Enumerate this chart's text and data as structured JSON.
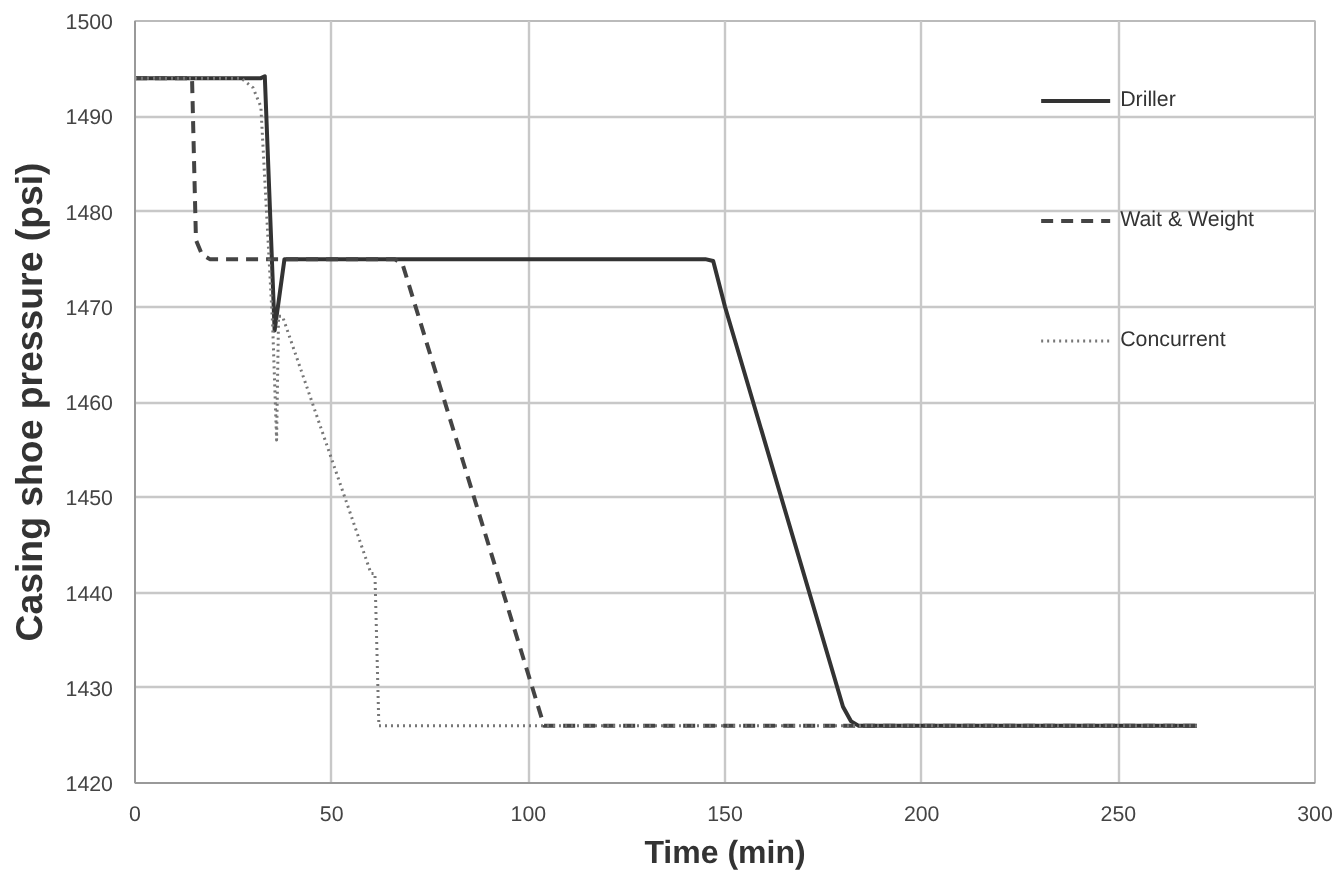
{
  "chart_data": {
    "type": "line",
    "xlabel": "Time (min)",
    "ylabel": "Casing shoe pressure (psi)",
    "xlim": [
      0,
      300
    ],
    "ylim": [
      1420,
      1500
    ],
    "xticks": [
      0,
      50,
      100,
      150,
      200,
      250,
      300
    ],
    "yticks": [
      1420,
      1430,
      1440,
      1450,
      1460,
      1470,
      1480,
      1490,
      1500
    ],
    "grid": true,
    "legend": "top right",
    "series": [
      {
        "name": "Driller",
        "color": "#333333",
        "line_style": "solid",
        "x": [
          0,
          32,
          33,
          35.5,
          38,
          145,
          147,
          150,
          180,
          182,
          184,
          270
        ],
        "values": [
          1494,
          1494,
          1494.2,
          1467.5,
          1475,
          1475,
          1474.8,
          1470,
          1428,
          1426.5,
          1426,
          1426
        ]
      },
      {
        "name": "Wait & Weight",
        "color": "#444444",
        "line_style": "dashed",
        "x": [
          0,
          14.5,
          15.5,
          17,
          19,
          66,
          68,
          104,
          106,
          270
        ],
        "values": [
          1494,
          1494,
          1477,
          1475.5,
          1475,
          1475,
          1474.5,
          1426,
          1426,
          1426
        ]
      },
      {
        "name": "Concurrent",
        "color": "#777777",
        "line_style": "dotted",
        "x": [
          0,
          27,
          30,
          32,
          35,
          36,
          36.5,
          37.5,
          60,
          61,
          62,
          270
        ],
        "values": [
          1494,
          1494,
          1493,
          1491,
          1468,
          1456,
          1469,
          1469,
          1442,
          1442,
          1426,
          1426
        ]
      }
    ]
  }
}
